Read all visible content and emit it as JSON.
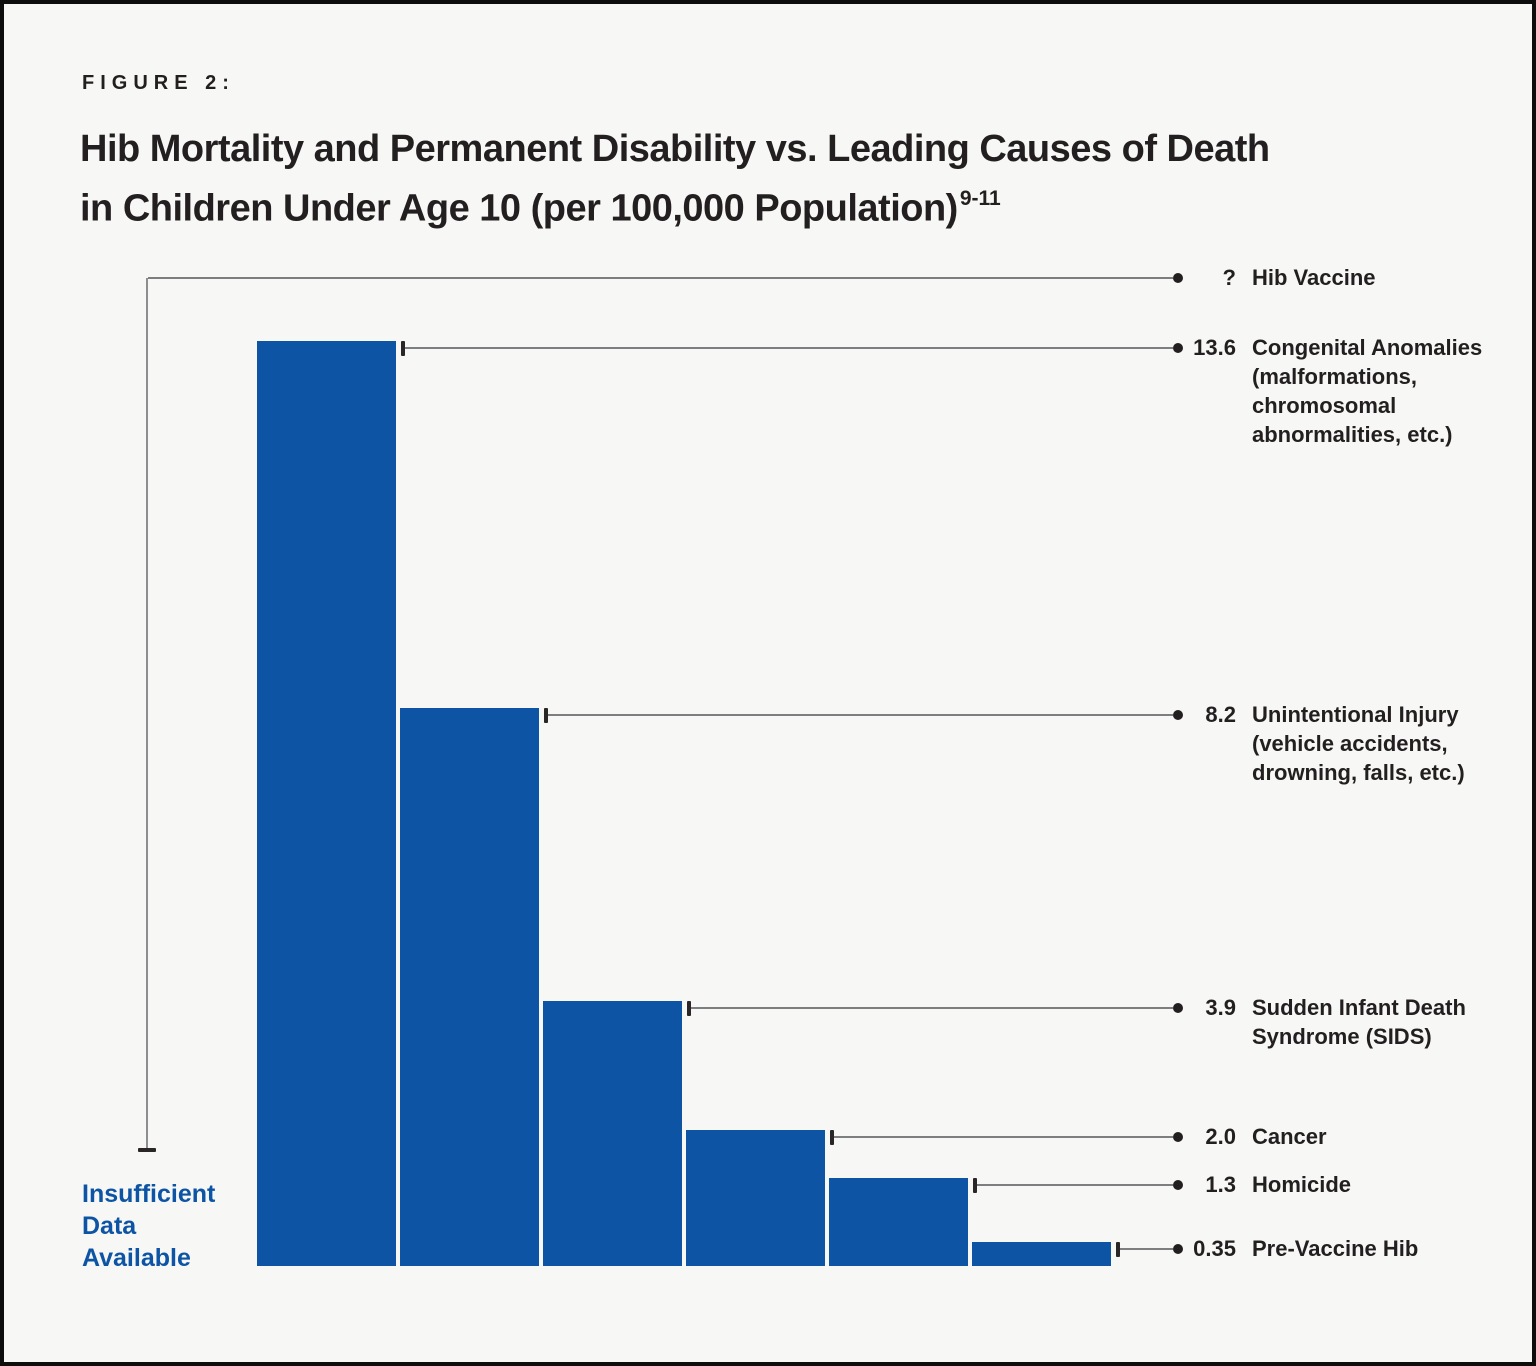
{
  "figure_label": "FIGURE 2:",
  "title": "Hib Mortality and Permanent Disability vs. Leading Causes of Death\nin Children Under Age 10 (per 100,000 Population)",
  "title_superscript": "9-11",
  "insufficient_data_label": "Insufficient\nData\nAvailable",
  "colors": {
    "bar_blue": "#0d54a4",
    "text_dark": "#231f20",
    "connector_gray": "#7d7e80",
    "background": "#f7f7f5",
    "page_border": "#0d0d0d"
  },
  "chart_data": {
    "type": "bar",
    "title": "Hib Mortality and Permanent Disability vs. Leading Causes of Death in Children Under Age 10 (per 100,000 Population) 9-11",
    "orientation": "vertical",
    "grid": false,
    "legend": "none",
    "axis_lines": false,
    "ylim": [
      0,
      14.5
    ],
    "unit": "deaths per 100,000 population",
    "categories": [
      "Hib Vaccine",
      "Congenital Anomalies",
      "Unintentional Injury",
      "Sudden Infant Death Syndrome (SIDS)",
      "Cancer",
      "Homicide",
      "Pre-Vaccine Hib"
    ],
    "values": [
      null,
      13.6,
      8.2,
      3.9,
      2.0,
      1.3,
      0.35
    ],
    "annotation": "Insufficient Data Available (applies to Hib Vaccine)",
    "items": [
      {
        "value_label": "?",
        "value": null,
        "label": "Hib Vaccine"
      },
      {
        "value_label": "13.6",
        "value": 13.6,
        "label": "Congenital Anomalies\n(malformations,\nchromosomal\nabnormalities, etc.)"
      },
      {
        "value_label": "8.2",
        "value": 8.2,
        "label": "Unintentional Injury\n(vehicle accidents,\ndrowning, falls, etc.)"
      },
      {
        "value_label": "3.9",
        "value": 3.9,
        "label": "Sudden Infant Death\nSyndrome (SIDS)"
      },
      {
        "value_label": "2.0",
        "value": 2.0,
        "label": "Cancer"
      },
      {
        "value_label": "1.3",
        "value": 1.3,
        "label": "Homicide"
      },
      {
        "value_label": "0.35",
        "value": 0.35,
        "label": "Pre-Vaccine Hib"
      }
    ]
  }
}
